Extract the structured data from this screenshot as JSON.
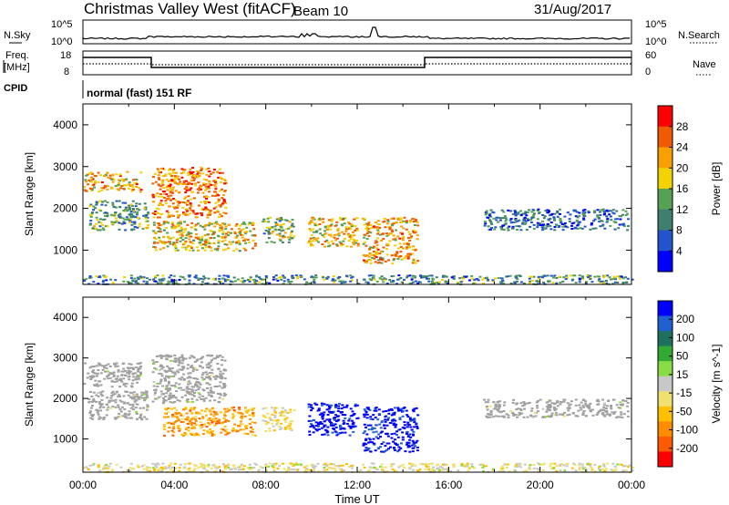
{
  "header": {
    "title": "Christmas Valley West (fitACF)",
    "beam": "Beam 10",
    "date": "31/Aug/2017"
  },
  "top_panels": {
    "nsky_label": "N.Sky",
    "nsky_ticks": [
      "10^5",
      "10^0"
    ],
    "nsearch_label": "N.Search",
    "nsearch_ticks": [
      "10^5",
      "10^0"
    ],
    "freq_label_1": "Freq.",
    "freq_label_2": "[MHz]",
    "freq_ticks": [
      "18",
      "8"
    ],
    "nave_label": "Nave",
    "nave_ticks": [
      "60",
      "0"
    ],
    "cpid_label": "CPID",
    "cpid_value": "normal (fast) 151 RF"
  },
  "colors": {
    "power_scale": [
      "#0000ff",
      "#2255cc",
      "#3f7f6f",
      "#55a255",
      "#f2d200",
      "#f7a000",
      "#f05a00",
      "#ff0000"
    ],
    "velocity_scale": [
      "#ff0000",
      "#ff5a00",
      "#ff8c00",
      "#ffc000",
      "#f0e070",
      "#c8c8c8",
      "#88dd44",
      "#33aa33",
      "#207060",
      "#2060d0",
      "#0000ff"
    ],
    "ground_scatter": "#a0a0a0"
  },
  "chart_data": [
    {
      "type": "heatmap",
      "title": "Power",
      "xlabel": "",
      "ylabel": "Slant Range [km]",
      "xlim": [
        0,
        24
      ],
      "ylim": [
        180,
        4500
      ],
      "x_ticks": [
        "00:00",
        "04:00",
        "08:00",
        "12:00",
        "16:00",
        "20:00",
        "00:00"
      ],
      "y_ticks": [
        "1000",
        "2000",
        "3000",
        "4000"
      ],
      "colorbar_label": "Power [dB]",
      "colorbar_ticks": [
        "28",
        "24",
        "20",
        "16",
        "12",
        "8",
        "4"
      ],
      "colorbar_range": [
        0,
        30
      ],
      "scatter_regions": [
        {
          "t_start": 0.0,
          "t_end": 2.5,
          "range_low": 2400,
          "range_high": 2900,
          "value": 20
        },
        {
          "t_start": 0.2,
          "t_end": 2.8,
          "range_low": 1500,
          "range_high": 2200,
          "value": 12
        },
        {
          "t_start": 3.0,
          "t_end": 6.2,
          "range_low": 1800,
          "range_high": 3000,
          "value": 22
        },
        {
          "t_start": 3.0,
          "t_end": 7.5,
          "range_low": 1000,
          "range_high": 1700,
          "value": 18
        },
        {
          "t_start": 7.8,
          "t_end": 9.2,
          "range_low": 1200,
          "range_high": 1800,
          "value": 14
        },
        {
          "t_start": 9.8,
          "t_end": 12.0,
          "range_low": 1100,
          "range_high": 1800,
          "value": 18
        },
        {
          "t_start": 12.2,
          "t_end": 14.6,
          "range_low": 700,
          "range_high": 1800,
          "value": 20
        },
        {
          "t_start": 17.5,
          "t_end": 23.8,
          "range_low": 1500,
          "range_high": 2000,
          "value": 8
        },
        {
          "t_start": 0.0,
          "t_end": 24.0,
          "range_low": 200,
          "range_high": 420,
          "value": 10
        }
      ]
    },
    {
      "type": "heatmap",
      "title": "Velocity",
      "xlabel": "Time UT",
      "ylabel": "Slant Range [km]",
      "xlim": [
        0,
        24
      ],
      "ylim": [
        180,
        4500
      ],
      "x_ticks": [
        "00:00",
        "04:00",
        "08:00",
        "12:00",
        "16:00",
        "20:00",
        "00:00"
      ],
      "y_ticks": [
        "1000",
        "2000",
        "3000",
        "4000"
      ],
      "colorbar_label": "Velocity [m s^-1]",
      "colorbar_ticks": [
        "200",
        "100",
        "50",
        "15",
        "-15",
        "-50",
        "-100",
        "-200"
      ],
      "colorbar_range": [
        -250,
        250
      ],
      "scatter_regions": [
        {
          "t_start": 0.0,
          "t_end": 2.5,
          "range_low": 2300,
          "range_high": 2900,
          "value": 0,
          "ground_scatter": true
        },
        {
          "t_start": 0.2,
          "t_end": 2.8,
          "range_low": 1500,
          "range_high": 2200,
          "value": 0,
          "ground_scatter": true
        },
        {
          "t_start": 3.0,
          "t_end": 6.2,
          "range_low": 1900,
          "range_high": 3100,
          "value": 0,
          "ground_scatter": true
        },
        {
          "t_start": 3.5,
          "t_end": 7.5,
          "range_low": 1100,
          "range_high": 1800,
          "value": -120
        },
        {
          "t_start": 7.8,
          "t_end": 9.2,
          "range_low": 1200,
          "range_high": 1800,
          "value": -40
        },
        {
          "t_start": 9.8,
          "t_end": 12.0,
          "range_low": 1100,
          "range_high": 1900,
          "value": 240
        },
        {
          "t_start": 12.2,
          "t_end": 14.6,
          "range_low": 700,
          "range_high": 1800,
          "value": 230
        },
        {
          "t_start": 17.5,
          "t_end": 23.8,
          "range_low": 1550,
          "range_high": 2000,
          "value": 0,
          "ground_scatter": true
        },
        {
          "t_start": 0.0,
          "t_end": 24.0,
          "range_low": 200,
          "range_high": 420,
          "value": -30
        }
      ]
    }
  ]
}
